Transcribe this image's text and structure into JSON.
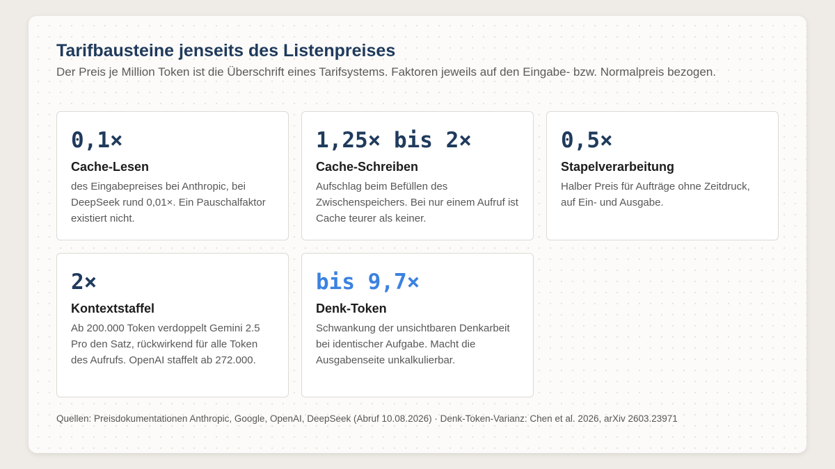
{
  "header": {
    "title": "Tarifbausteine jenseits des Listenpreises",
    "subtitle": "Der Preis je Million Token ist die Überschrift eines Tarifsystems. Faktoren jeweils auf den Eingabe- bzw. Normalpreis bezogen."
  },
  "cards": [
    {
      "value": "0,1×",
      "title": "Cache-Lesen",
      "text": "des Eingabepreises bei Anthropic, bei DeepSeek rund 0,01×. Ein Pauschalfaktor existiert nicht."
    },
    {
      "value": "1,25× bis 2×",
      "title": "Cache-Schreiben",
      "text": "Aufschlag beim Befüllen des Zwischenspeichers. Bei nur einem Aufruf ist Cache teurer als keiner."
    },
    {
      "value": "0,5×",
      "title": "Stapelverarbeitung",
      "text": "Halber Preis für Aufträge ohne Zeitdruck, auf Ein- und Ausgabe."
    },
    {
      "value": "2×",
      "title": "Kontextstaffel",
      "text": "Ab 200.000 Token verdoppelt Gemini 2.5 Pro den Satz, rückwirkend für alle Token des Aufrufs. OpenAI staffelt ab 272.000."
    },
    {
      "value": "bis 9,7×",
      "title": "Denk-Token",
      "text": "Schwankung der unsichtbaren Denkarbeit bei identischer Aufgabe. Macht die Ausgabenseite unkalkulierbar."
    }
  ],
  "footer": {
    "sources": "Quellen: Preisdokumentationen Anthropic, Google, OpenAI, DeepSeek (Abruf 10.08.2026) · Denk-Token-Varianz: Chen et al. 2026, arXiv 2603.23971"
  },
  "colors": {
    "title": "#1f3a5c",
    "value": "#1f3a5c",
    "accent_value": "#3b82e0",
    "page_background": "#efebe6",
    "panel_background": "#fcfbf9"
  }
}
